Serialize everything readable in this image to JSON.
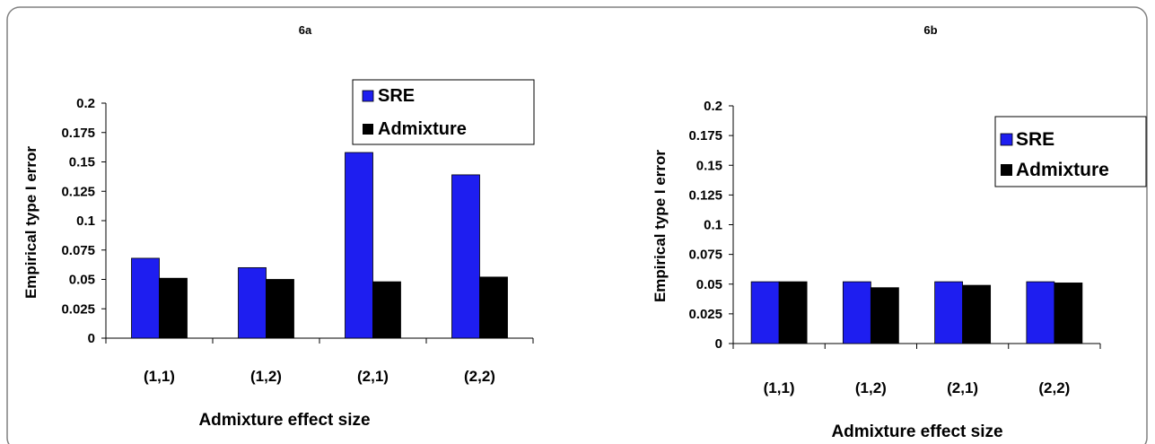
{
  "colors": {
    "sre": "#1e1ef0",
    "admixture": "#000000",
    "frame": "#808080"
  },
  "chart_data": [
    {
      "type": "bar",
      "title": "6a",
      "xlabel": "Admixture effect size",
      "ylabel": "Empirical type I error",
      "categories": [
        "(1,1)",
        "(1,2)",
        "(2,1)",
        "(2,2)"
      ],
      "y_ticks": [
        "0",
        "0.025",
        "0.05",
        "0.075",
        "0.1",
        "0.125",
        "0.15",
        "0.175",
        "0.2"
      ],
      "ylim": [
        0,
        0.2
      ],
      "grid": false,
      "legend_position": "top-right",
      "series": [
        {
          "name": "SRE",
          "values": [
            0.068,
            0.06,
            0.158,
            0.139
          ]
        },
        {
          "name": "Admixture",
          "values": [
            0.051,
            0.05,
            0.048,
            0.052
          ]
        }
      ]
    },
    {
      "type": "bar",
      "title": "6b",
      "xlabel": "Admixture effect size",
      "ylabel": "Empirical type I error",
      "categories": [
        "(1,1)",
        "(1,2)",
        "(2,1)",
        "(2,2)"
      ],
      "y_ticks": [
        "0",
        "0.025",
        "0.05",
        "0.075",
        "0.1",
        "0.125",
        "0.15",
        "0.175",
        "0.2"
      ],
      "ylim": [
        0,
        0.2
      ],
      "grid": false,
      "legend_position": "right",
      "series": [
        {
          "name": "SRE",
          "values": [
            0.052,
            0.052,
            0.052,
            0.052
          ]
        },
        {
          "name": "Admixture",
          "values": [
            0.052,
            0.047,
            0.049,
            0.051
          ]
        }
      ]
    }
  ]
}
